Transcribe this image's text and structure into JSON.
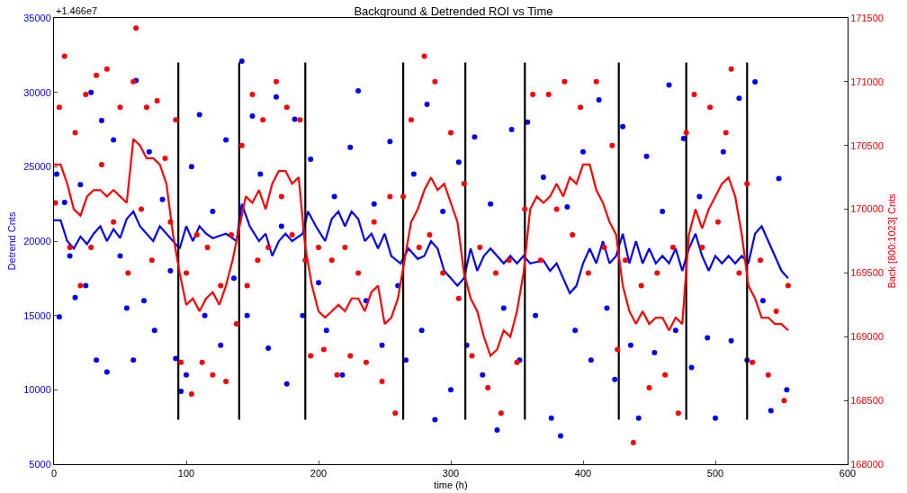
{
  "chart_data": {
    "type": "scatter",
    "title": "Background & Detrended ROI vs Time",
    "xlabel": "time (h)",
    "ylabel": "Detrend Cnts",
    "y2label": "Back [800:1023] Cnts",
    "annotations": [
      "+1.466e7"
    ],
    "xlim": [
      0,
      600
    ],
    "xticks": [
      0,
      100,
      200,
      300,
      400,
      500,
      600
    ],
    "ylim": [
      5000,
      35000
    ],
    "yticks": [
      5000,
      10000,
      15000,
      20000,
      25000,
      30000,
      35000
    ],
    "y2lim": [
      168000,
      171500
    ],
    "y2ticks": [
      168000,
      168500,
      169000,
      169500,
      170000,
      170500,
      171000,
      171500
    ],
    "grid": false,
    "marker": "circle",
    "series": [
      {
        "color": "#0000ff",
        "x": [
          2,
          4,
          8,
          12,
          16,
          20,
          24,
          28,
          32,
          36,
          40,
          45,
          50,
          55,
          60,
          62,
          68,
          72,
          76,
          82,
          88,
          92,
          96,
          100,
          104,
          110,
          114,
          120,
          126,
          130,
          136,
          142,
          146,
          150,
          156,
          162,
          168,
          172,
          176,
          182,
          188,
          194,
          200,
          206,
          212,
          218,
          224,
          230,
          236,
          242,
          248,
          254,
          260,
          266,
          272,
          278,
          282,
          288,
          294,
          300,
          306,
          312,
          318,
          324,
          330,
          335,
          340,
          346,
          352,
          358,
          364,
          370,
          376,
          383,
          388,
          394,
          400,
          406,
          412,
          418,
          424,
          430,
          436,
          442,
          448,
          454,
          460,
          465,
          470,
          476,
          482,
          488,
          494,
          500,
          506,
          512,
          518,
          524,
          530,
          536,
          542,
          548,
          554
        ],
        "values": [
          24500,
          14900,
          22600,
          19000,
          16200,
          23800,
          17000,
          30000,
          12000,
          28100,
          11200,
          26800,
          19000,
          15500,
          12000,
          30800,
          16000,
          26000,
          14000,
          22800,
          18000,
          12100,
          9900,
          11000,
          25000,
          28500,
          15000,
          22000,
          13000,
          26800,
          17500,
          32100,
          15000,
          28400,
          24500,
          12800,
          29700,
          21000,
          10400,
          28200,
          15000,
          25500,
          17200,
          14000,
          23000,
          11000,
          26300,
          30100,
          16000,
          22500,
          13000,
          26700,
          17000,
          12000,
          24500,
          14000,
          29200,
          8000,
          22000,
          10000,
          25300,
          13000,
          27000,
          11000,
          22500,
          7300,
          15500,
          27500,
          12000,
          28000,
          15000,
          24300,
          8100,
          6900,
          22300,
          14000,
          26000,
          12000,
          29500,
          15500,
          10700,
          27700,
          13000,
          8100,
          25700,
          12500,
          22000,
          30500,
          14000,
          26900,
          11500,
          23000,
          13500,
          8100,
          26000,
          13300,
          29600,
          12000,
          30700,
          16000,
          8600,
          24200,
          10000
        ]
      },
      {
        "axis": "y2",
        "color": "#ff0000",
        "x": [
          1,
          4,
          8,
          12,
          16,
          20,
          24,
          28,
          32,
          36,
          40,
          45,
          50,
          56,
          60,
          62,
          66,
          70,
          74,
          78,
          84,
          88,
          92,
          96,
          100,
          104,
          108,
          112,
          116,
          120,
          126,
          130,
          134,
          138,
          142,
          146,
          150,
          154,
          158,
          162,
          168,
          172,
          176,
          180,
          186,
          190,
          194,
          200,
          204,
          210,
          214,
          220,
          224,
          230,
          236,
          242,
          248,
          254,
          258,
          264,
          270,
          276,
          280,
          284,
          288,
          294,
          300,
          306,
          310,
          316,
          322,
          328,
          334,
          338,
          344,
          350,
          356,
          362,
          368,
          374,
          380,
          386,
          392,
          398,
          404,
          410,
          416,
          422,
          426,
          432,
          438,
          444,
          450,
          456,
          462,
          468,
          472,
          478,
          484,
          490,
          496,
          502,
          508,
          512,
          518,
          524,
          528,
          534,
          540,
          546,
          552,
          555
        ],
        "values": [
          170050,
          170800,
          171200,
          169700,
          170600,
          169400,
          170900,
          169700,
          171050,
          170350,
          171100,
          169900,
          170800,
          169500,
          171000,
          171420,
          170000,
          170800,
          169600,
          170850,
          170400,
          169900,
          170700,
          168800,
          169500,
          168550,
          169800,
          168800,
          169700,
          168700,
          169400,
          168650,
          169800,
          169100,
          170500,
          169400,
          170900,
          169600,
          170700,
          169700,
          171000,
          170100,
          170800,
          169800,
          170700,
          169600,
          168850,
          169700,
          168900,
          169600,
          168700,
          169700,
          168850,
          169500,
          168800,
          169900,
          168650,
          170100,
          168400,
          170100,
          170700,
          169700,
          171200,
          169800,
          171000,
          169500,
          170600,
          169300,
          170200,
          168850,
          169700,
          168600,
          169500,
          168400,
          169600,
          168800,
          170000,
          170900,
          169600,
          170900,
          170000,
          171000,
          169800,
          170800,
          169500,
          171000,
          169700,
          170500,
          168900,
          169600,
          168170,
          169400,
          168600,
          169500,
          168700,
          169700,
          168400,
          170600,
          170900,
          169700,
          170800,
          169900,
          170600,
          171100,
          169500,
          170200,
          168800,
          169600,
          168700,
          169200,
          168500,
          169400
        ]
      },
      {
        "type": "line",
        "marker": "none",
        "line_style": "solid",
        "color": "#0000ff",
        "x": [
          0,
          5,
          10,
          15,
          20,
          25,
          30,
          35,
          40,
          45,
          50,
          55,
          60,
          65,
          70,
          75,
          80,
          85,
          90,
          95,
          100,
          105,
          110,
          115,
          120,
          130,
          138,
          142,
          148,
          155,
          160,
          165,
          170,
          175,
          180,
          188,
          192,
          198,
          205,
          210,
          215,
          220,
          225,
          230,
          235,
          240,
          245,
          250,
          255,
          262,
          268,
          275,
          280,
          285,
          290,
          295,
          300,
          305,
          310,
          315,
          320,
          325,
          330,
          340,
          345,
          350,
          355,
          360,
          370,
          375,
          380,
          385,
          390,
          395,
          400,
          405,
          410,
          415,
          420,
          425,
          430,
          435,
          440,
          445,
          450,
          455,
          460,
          465,
          470,
          475,
          480,
          485,
          490,
          495,
          500,
          505,
          510,
          515,
          520,
          525,
          530,
          535,
          540,
          545,
          550,
          555
        ],
        "values": [
          21400,
          21400,
          20000,
          19500,
          20300,
          19800,
          20500,
          21000,
          20000,
          20800,
          20200,
          21500,
          22000,
          21000,
          20500,
          20000,
          21000,
          20500,
          20000,
          19500,
          21000,
          20000,
          21000,
          20500,
          20200,
          20500,
          20000,
          22500,
          21000,
          20000,
          20500,
          19000,
          20000,
          20500,
          20000,
          20500,
          22000,
          21000,
          20000,
          21500,
          22000,
          21000,
          22000,
          21500,
          20000,
          20500,
          19500,
          20500,
          19000,
          18500,
          19500,
          18800,
          19000,
          20000,
          19500,
          18000,
          17500,
          17000,
          17500,
          19500,
          18000,
          19000,
          19500,
          18500,
          19000,
          18500,
          19000,
          18500,
          18700,
          18000,
          18500,
          17500,
          16500,
          17000,
          18500,
          19500,
          18500,
          20000,
          18500,
          19000,
          20500,
          18500,
          20000,
          18500,
          19500,
          18500,
          19000,
          18500,
          19500,
          18000,
          19500,
          20500,
          19000,
          18000,
          19000,
          18500,
          19000,
          18500,
          19000,
          18500,
          20500,
          21000,
          20000,
          19000,
          18000,
          17500
        ]
      },
      {
        "type": "line",
        "marker": "none",
        "line_style": "solid",
        "axis": "y2",
        "color": "#ff0000",
        "x": [
          0,
          5,
          10,
          15,
          20,
          25,
          30,
          35,
          40,
          45,
          50,
          55,
          60,
          65,
          70,
          75,
          80,
          85,
          90,
          95,
          100,
          105,
          110,
          115,
          120,
          125,
          130,
          135,
          140,
          145,
          150,
          155,
          160,
          165,
          170,
          175,
          180,
          185,
          190,
          195,
          200,
          205,
          210,
          215,
          220,
          225,
          230,
          235,
          240,
          245,
          250,
          255,
          260,
          265,
          270,
          275,
          280,
          285,
          290,
          295,
          300,
          305,
          310,
          315,
          320,
          325,
          330,
          335,
          340,
          345,
          350,
          355,
          360,
          365,
          370,
          375,
          380,
          385,
          390,
          395,
          400,
          405,
          410,
          415,
          420,
          425,
          430,
          435,
          440,
          445,
          450,
          455,
          460,
          465,
          470,
          475,
          480,
          485,
          490,
          495,
          500,
          505,
          510,
          515,
          520,
          525,
          530,
          535,
          540,
          545,
          550,
          555
        ],
        "values": [
          170350,
          170350,
          170200,
          170000,
          169950,
          170100,
          170150,
          170150,
          170100,
          170150,
          170100,
          170050,
          170550,
          170500,
          170400,
          170400,
          170350,
          170200,
          169800,
          169500,
          169250,
          169300,
          169200,
          169300,
          169350,
          169250,
          169400,
          169600,
          169850,
          170100,
          170050,
          170150,
          170000,
          170200,
          170300,
          170300,
          170200,
          170250,
          169700,
          169400,
          169200,
          169150,
          169200,
          169250,
          169200,
          169300,
          169300,
          169200,
          169350,
          169400,
          169100,
          169150,
          169300,
          169600,
          169900,
          170000,
          170150,
          170250,
          170150,
          170200,
          170050,
          169900,
          169500,
          169300,
          169200,
          169000,
          168850,
          168900,
          169050,
          169000,
          169200,
          169500,
          170000,
          170100,
          170050,
          170100,
          170200,
          170100,
          170250,
          170200,
          170350,
          170350,
          170150,
          170050,
          169900,
          169800,
          169400,
          169200,
          169100,
          169200,
          169100,
          169150,
          169150,
          169050,
          169150,
          169100,
          169800,
          170000,
          169850,
          170000,
          170100,
          170200,
          170250,
          170100,
          169800,
          169400,
          169300,
          169150,
          169150,
          169100,
          169100,
          169050
        ]
      },
      {
        "type": "line",
        "marker": "none",
        "line_style": "solid",
        "color": "#000000",
        "x": [
          94,
          94,
          null,
          140,
          140,
          null,
          190,
          190,
          null,
          264,
          264,
          null,
          311,
          311,
          null,
          356,
          356,
          null,
          427,
          427,
          null,
          478,
          478,
          null,
          524,
          524
        ],
        "values": [
          8000,
          32000,
          null,
          8000,
          32000,
          null,
          8000,
          32000,
          null,
          8000,
          32000,
          null,
          8000,
          32000,
          null,
          8000,
          32000,
          null,
          8000,
          32000,
          null,
          8000,
          32000,
          null,
          8000,
          32000
        ]
      }
    ]
  }
}
